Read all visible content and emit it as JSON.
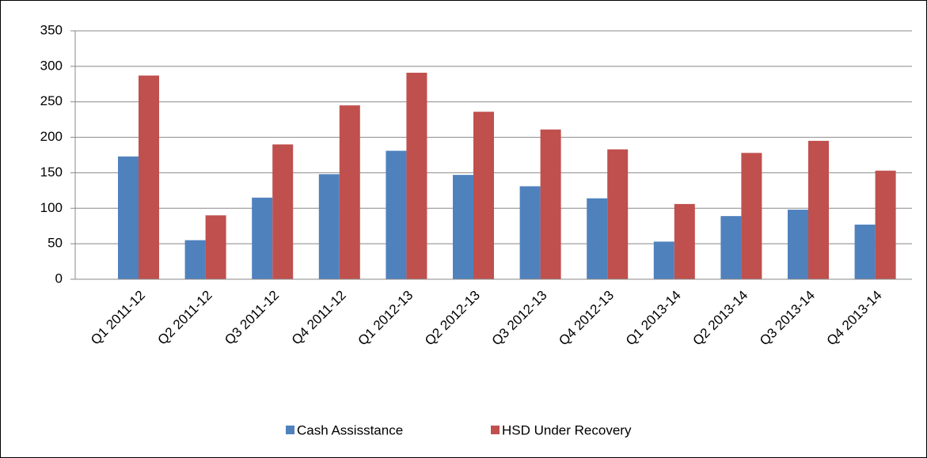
{
  "chart_data": {
    "type": "bar",
    "categories": [
      "Q1 2011-12",
      "Q2 2011-12",
      "Q3 2011-12",
      "Q4 2011-12",
      "Q1 2012-13",
      "Q2 2012-13",
      "Q3 2012-13",
      "Q4 2012-13",
      "Q1 2013-14",
      "Q2 2013-14",
      "Q3 2013-14",
      "Q4 2013-14"
    ],
    "series": [
      {
        "name": "Cash Assisstance",
        "color": "#4f81bd",
        "values": [
          173,
          55,
          115,
          148,
          181,
          147,
          131,
          114,
          53,
          89,
          98,
          77
        ]
      },
      {
        "name": "HSD Under Recovery",
        "color": "#c0504d",
        "values": [
          287,
          90,
          190,
          245,
          291,
          236,
          211,
          183,
          106,
          178,
          195,
          153
        ]
      }
    ],
    "ylim": [
      0,
      350
    ],
    "yticks": [
      0,
      50,
      100,
      150,
      200,
      250,
      300,
      350
    ],
    "grid": true,
    "legend": "bottom"
  }
}
